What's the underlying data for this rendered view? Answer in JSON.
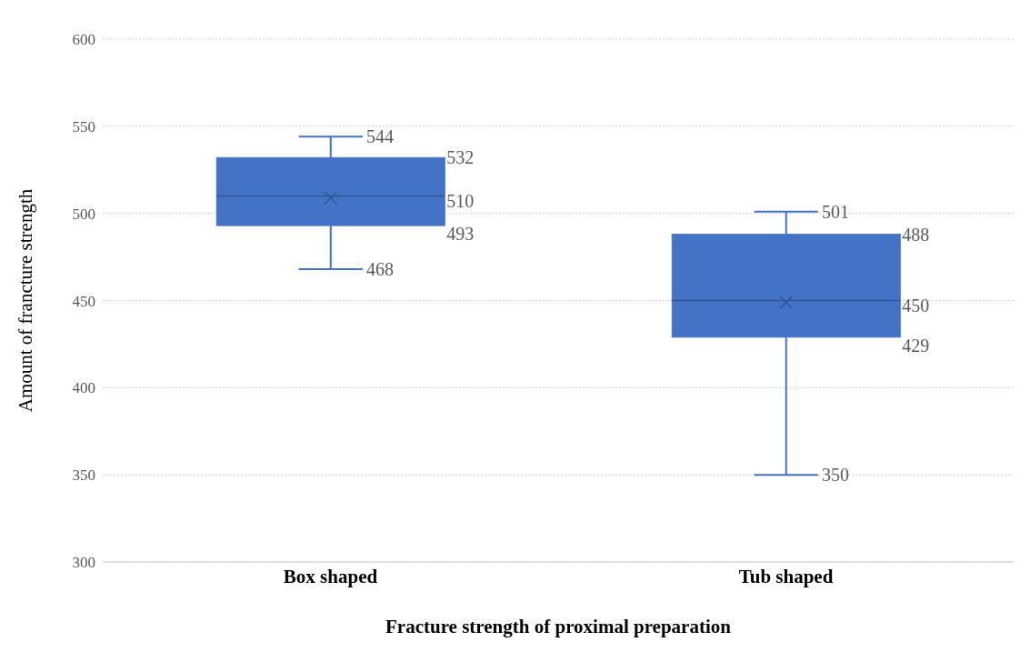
{
  "chart_data": {
    "type": "box",
    "xlabel": "Fracture strength of proximal preparation",
    "ylabel": "Amount of francture strength",
    "categories": [
      "Box shaped",
      "Tub shaped"
    ],
    "boxes": [
      {
        "low": 468,
        "q1": 493,
        "median": 510,
        "q3": 532,
        "high": 544,
        "mean": 509
      },
      {
        "low": 350,
        "q1": 429,
        "median": 450,
        "q3": 488,
        "high": 501,
        "mean": 449
      }
    ],
    "annotations": [
      "544",
      "532",
      "510",
      "493",
      "468",
      "501",
      "488",
      "450",
      "429",
      "350"
    ],
    "color": "#4472c4",
    "ylim": [
      300,
      600
    ],
    "yticks": [
      300,
      350,
      400,
      450,
      500,
      550,
      600
    ],
    "grid": "y"
  }
}
